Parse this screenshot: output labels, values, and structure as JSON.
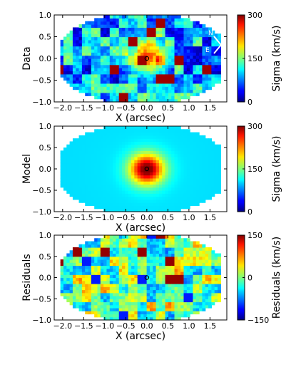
{
  "chart_data": [
    {
      "type": "heatmap",
      "ylabel": "Data",
      "xlabel": "X (arcsec)",
      "xlim": [
        -2.2,
        1.9
      ],
      "ylim": [
        -1.0,
        1.0
      ],
      "xticks": [
        "−2.0",
        "−1.5",
        "−1.0",
        "−0.5",
        "0.0",
        "0.5",
        "1.0",
        "1.5"
      ],
      "yticks": [
        "1.0",
        "0.5",
        "0.0",
        "−0.5",
        "−1.0"
      ],
      "colorbar": {
        "label": "Sigma (km/s)",
        "range": [
          0,
          300
        ],
        "ticks": [
          "300",
          "150",
          "0"
        ]
      },
      "colormap": "jet",
      "center_marker": [
        0.0,
        0.0
      ],
      "compass": [
        "N",
        "E"
      ],
      "grid": false
    },
    {
      "type": "heatmap",
      "ylabel": "Model",
      "xlabel": "X (arcsec)",
      "xlim": [
        -2.2,
        1.9
      ],
      "ylim": [
        -1.0,
        1.0
      ],
      "xticks": [
        "−2.0",
        "−1.5",
        "−1.0",
        "−0.5",
        "0.0",
        "0.5",
        "1.0",
        "1.5"
      ],
      "yticks": [
        "1.0",
        "0.5",
        "0.0",
        "−0.5",
        "−1.0"
      ],
      "colorbar": {
        "label": "Sigma (km/s)",
        "range": [
          0,
          300
        ],
        "ticks": [
          "300",
          "150",
          "0"
        ]
      },
      "colormap": "jet",
      "center_marker": [
        0.0,
        0.0
      ],
      "grid": false
    },
    {
      "type": "heatmap",
      "ylabel": "Residuals",
      "xlabel": "X (arcsec)",
      "xlim": [
        -2.2,
        1.9
      ],
      "ylim": [
        -1.0,
        1.0
      ],
      "xticks": [
        "−2.0",
        "−1.5",
        "−1.0",
        "−0.5",
        "0.0",
        "0.5",
        "1.0",
        "1.5"
      ],
      "yticks": [
        "1.0",
        "0.5",
        "0.0",
        "−0.5",
        "−1.0"
      ],
      "colorbar": {
        "label": "Residuals (km/s)",
        "range": [
          -150,
          150
        ],
        "ticks": [
          "150",
          "0",
          "−150"
        ]
      },
      "colormap": "jet",
      "center_marker": [
        0.0,
        0.0
      ],
      "grid": false
    }
  ]
}
